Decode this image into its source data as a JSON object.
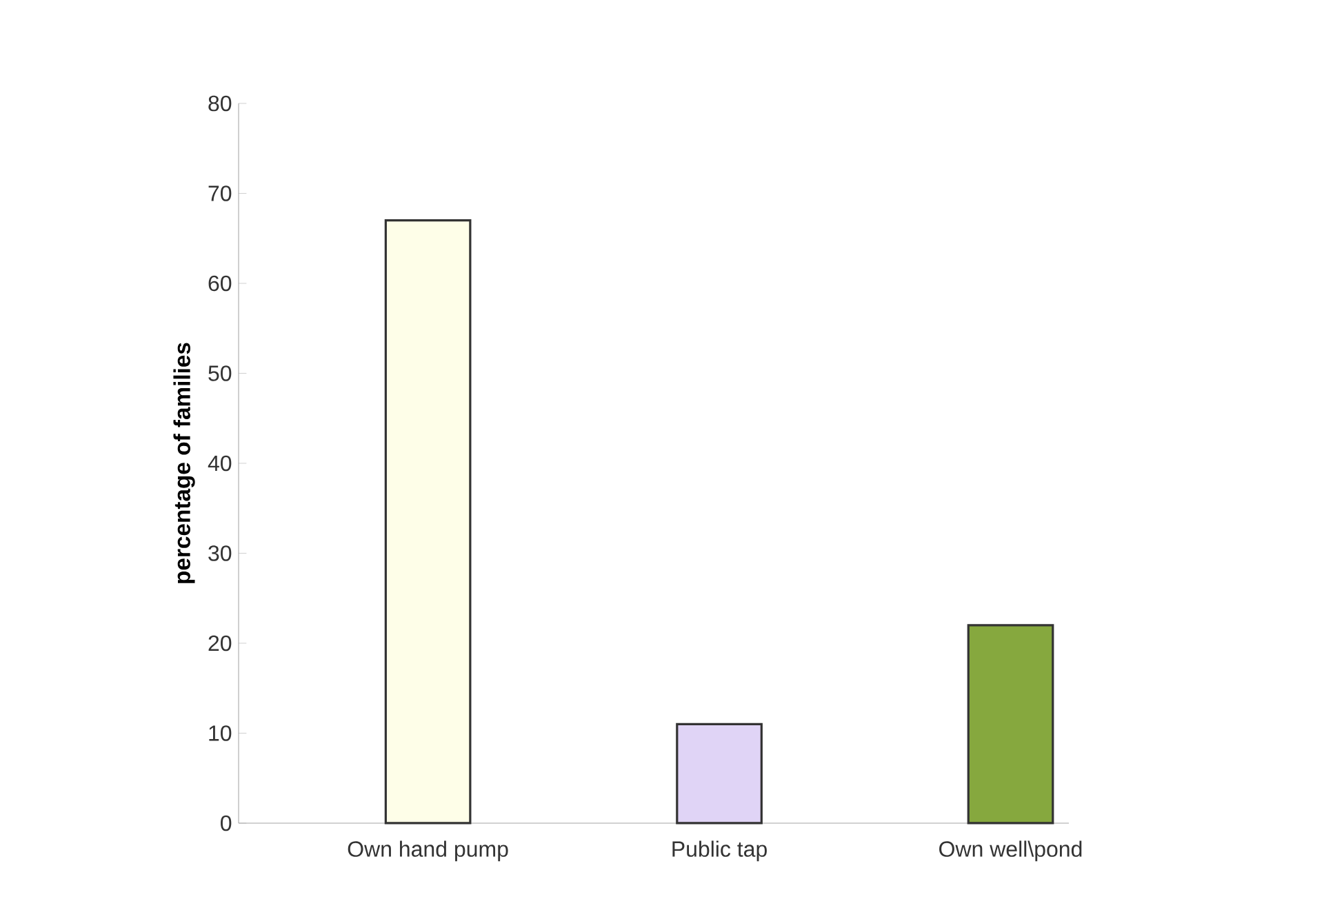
{
  "chart_data": {
    "type": "bar",
    "ylabel": "percentage of families",
    "categories": [
      "Own hand pump",
      "Public tap",
      "Own well\\pond"
    ],
    "values": [
      67,
      11,
      22
    ],
    "colors": [
      "#fefee8",
      "#e0d4f6",
      "#86a83e"
    ],
    "ylim": [
      0,
      80
    ],
    "yticks": [
      0,
      10,
      20,
      30,
      40,
      50,
      60,
      70,
      80
    ],
    "grid": false
  }
}
